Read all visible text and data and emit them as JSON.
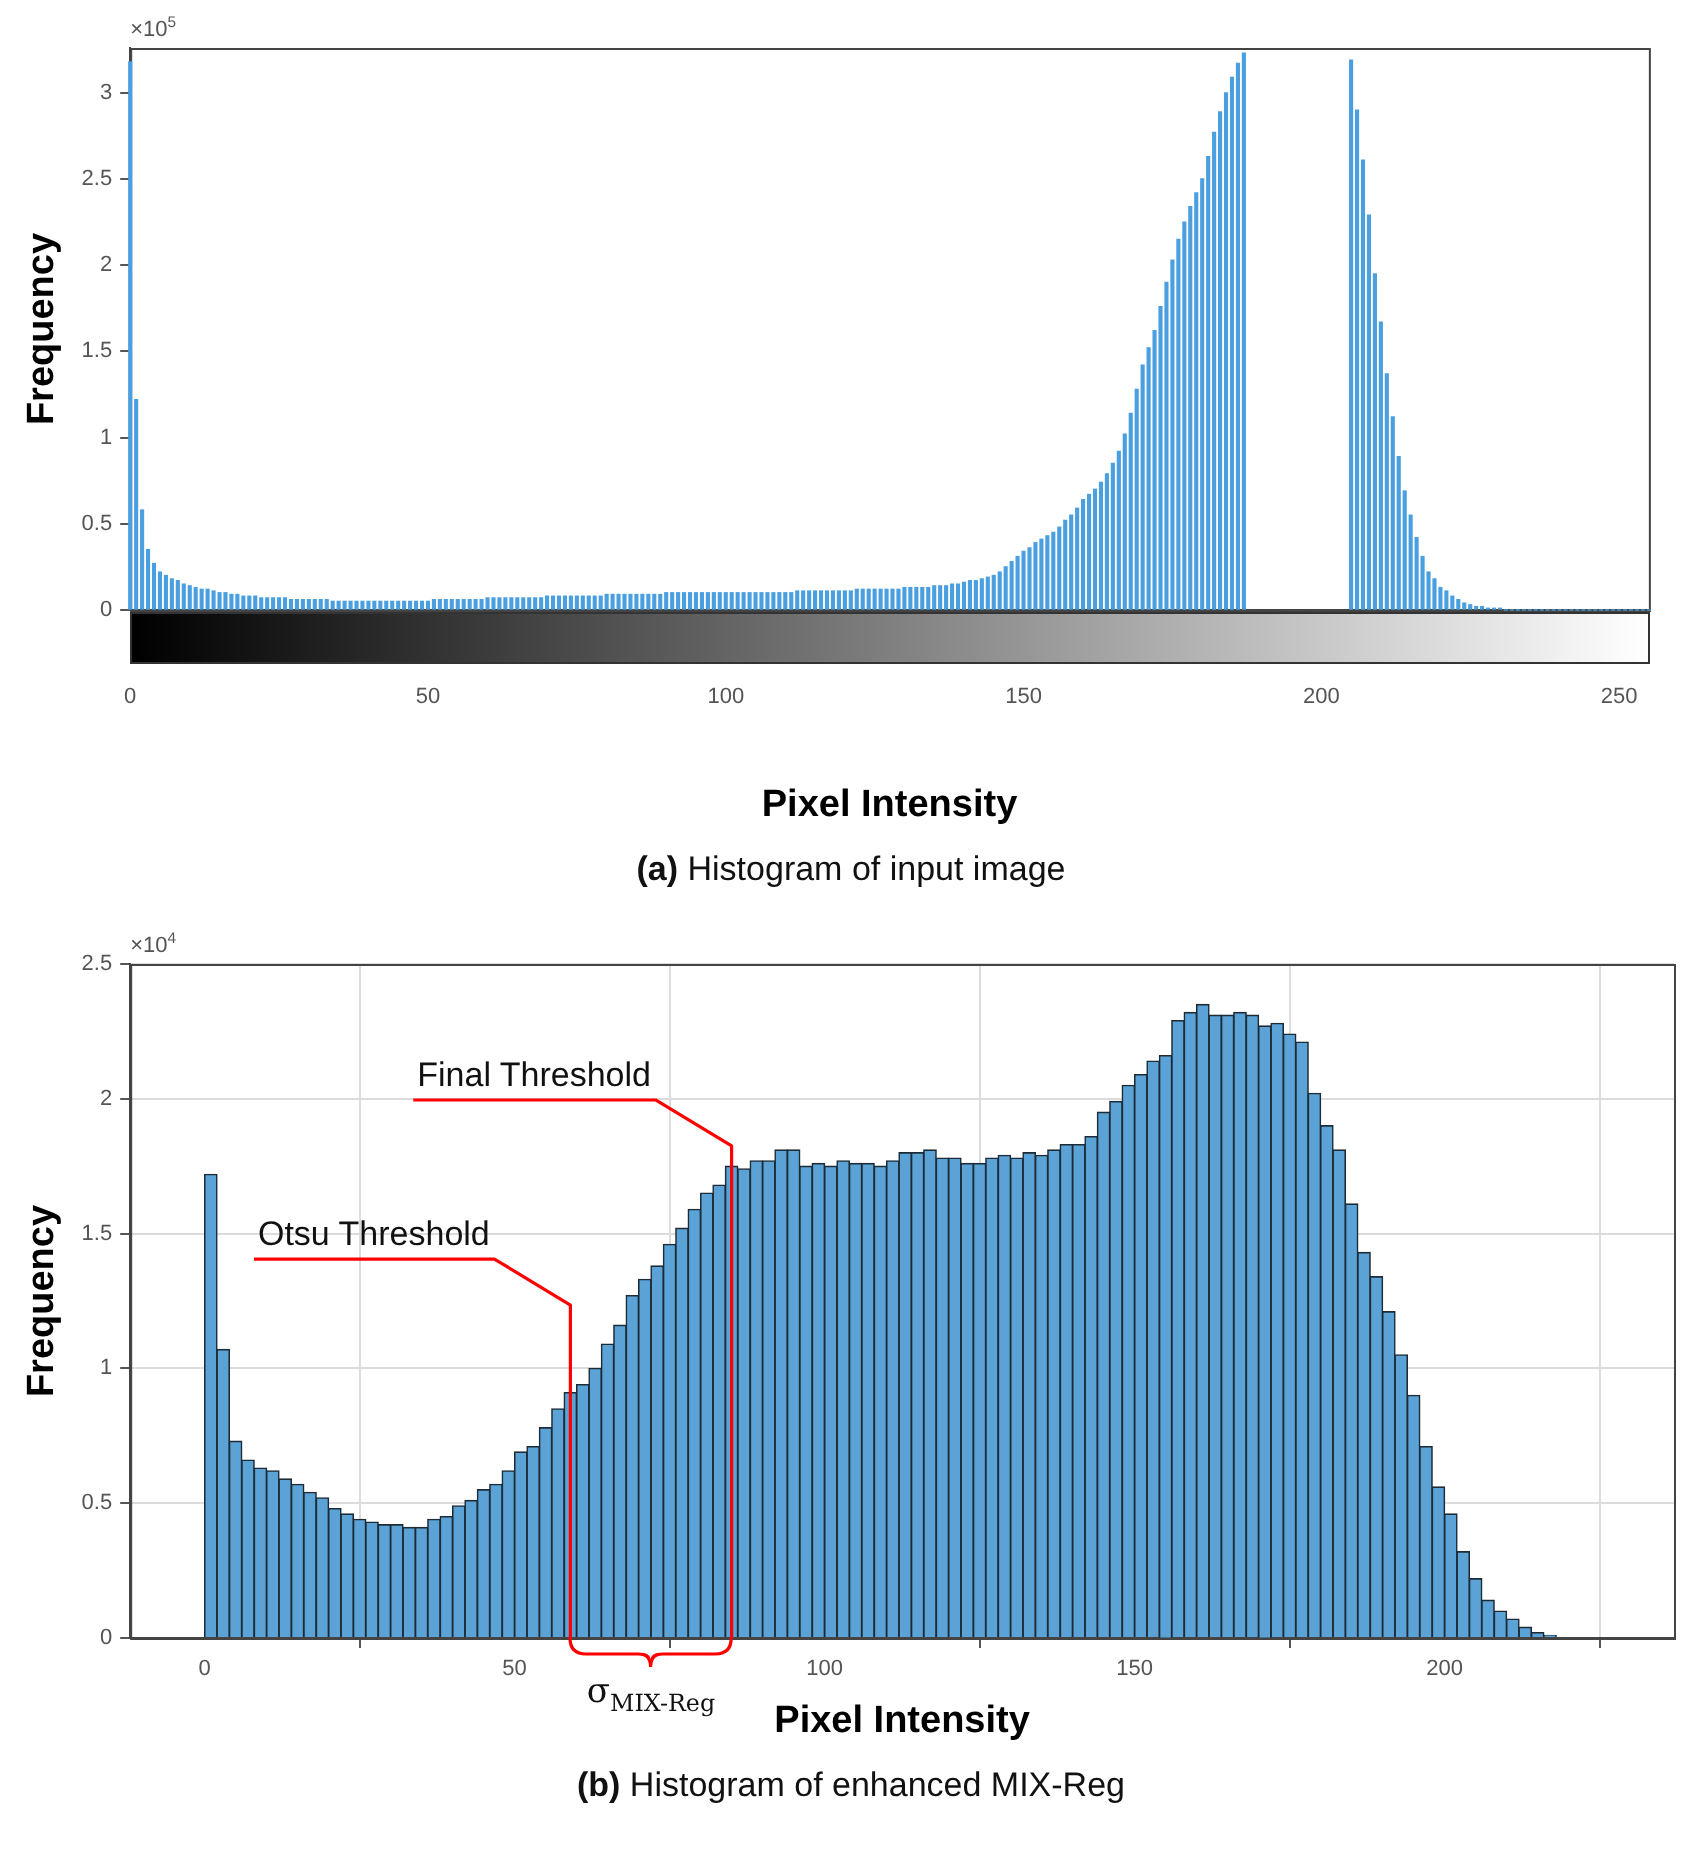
{
  "chart_data": [
    {
      "type": "bar",
      "xlabel": "Pixel Intensity",
      "ylabel": "Frequency",
      "color": "#4a9fe0",
      "x": [
        0,
        1,
        2,
        3,
        4,
        5,
        6,
        7,
        8,
        9,
        10,
        11,
        12,
        13,
        14,
        15,
        16,
        17,
        18,
        19,
        20,
        21,
        22,
        23,
        24,
        25,
        26,
        27,
        28,
        29,
        30,
        31,
        32,
        33,
        34,
        35,
        36,
        37,
        38,
        39,
        40,
        41,
        42,
        43,
        44,
        45,
        46,
        47,
        48,
        49,
        50,
        51,
        52,
        53,
        54,
        55,
        56,
        57,
        58,
        59,
        60,
        61,
        62,
        63,
        64,
        65,
        66,
        67,
        68,
        69,
        70,
        71,
        72,
        73,
        74,
        75,
        76,
        77,
        78,
        79,
        80,
        81,
        82,
        83,
        84,
        85,
        86,
        87,
        88,
        89,
        90,
        91,
        92,
        93,
        94,
        95,
        96,
        97,
        98,
        99,
        100,
        101,
        102,
        103,
        104,
        105,
        106,
        107,
        108,
        109,
        110,
        111,
        112,
        113,
        114,
        115,
        116,
        117,
        118,
        119,
        120,
        121,
        122,
        123,
        124,
        125,
        126,
        127,
        128,
        129,
        130,
        131,
        132,
        133,
        134,
        135,
        136,
        137,
        138,
        139,
        140,
        141,
        142,
        143,
        144,
        145,
        146,
        147,
        148,
        149,
        150,
        151,
        152,
        153,
        154,
        155,
        156,
        157,
        158,
        159,
        160,
        161,
        162,
        163,
        164,
        165,
        166,
        167,
        168,
        169,
        170,
        171,
        172,
        173,
        174,
        175,
        176,
        177,
        178,
        179,
        180,
        181,
        182,
        183,
        184,
        185,
        186,
        187,
        188,
        189,
        190,
        191,
        192,
        193,
        194,
        195,
        196,
        197,
        198,
        199,
        200,
        201,
        202,
        203,
        204,
        205,
        206,
        207,
        208,
        209,
        210,
        211,
        212,
        213,
        214,
        215,
        216,
        217,
        218,
        219,
        220,
        221,
        222,
        223,
        224,
        225,
        226,
        227,
        228,
        229,
        230,
        231,
        232,
        233,
        234,
        235,
        236,
        237,
        238,
        239,
        240,
        241,
        242,
        243,
        244,
        245,
        246,
        247,
        248,
        249,
        250,
        251,
        252,
        253,
        254,
        255
      ],
      "values": [
        3.18,
        1.22,
        0.58,
        0.35,
        0.27,
        0.22,
        0.2,
        0.18,
        0.17,
        0.15,
        0.14,
        0.13,
        0.12,
        0.12,
        0.11,
        0.1,
        0.1,
        0.09,
        0.09,
        0.08,
        0.08,
        0.08,
        0.07,
        0.07,
        0.07,
        0.07,
        0.07,
        0.06,
        0.06,
        0.06,
        0.06,
        0.06,
        0.06,
        0.06,
        0.05,
        0.05,
        0.05,
        0.05,
        0.05,
        0.05,
        0.05,
        0.05,
        0.05,
        0.05,
        0.05,
        0.05,
        0.05,
        0.05,
        0.05,
        0.05,
        0.05,
        0.06,
        0.06,
        0.06,
        0.06,
        0.06,
        0.06,
        0.06,
        0.06,
        0.06,
        0.07,
        0.07,
        0.07,
        0.07,
        0.07,
        0.07,
        0.07,
        0.07,
        0.07,
        0.07,
        0.08,
        0.08,
        0.08,
        0.08,
        0.08,
        0.08,
        0.08,
        0.08,
        0.08,
        0.08,
        0.09,
        0.09,
        0.09,
        0.09,
        0.09,
        0.09,
        0.09,
        0.09,
        0.09,
        0.09,
        0.1,
        0.1,
        0.1,
        0.1,
        0.1,
        0.1,
        0.1,
        0.1,
        0.1,
        0.1,
        0.1,
        0.1,
        0.1,
        0.1,
        0.1,
        0.1,
        0.1,
        0.1,
        0.1,
        0.1,
        0.1,
        0.1,
        0.11,
        0.11,
        0.11,
        0.11,
        0.11,
        0.11,
        0.11,
        0.11,
        0.11,
        0.11,
        0.12,
        0.12,
        0.12,
        0.12,
        0.12,
        0.12,
        0.12,
        0.12,
        0.13,
        0.13,
        0.13,
        0.13,
        0.13,
        0.14,
        0.14,
        0.14,
        0.15,
        0.15,
        0.16,
        0.17,
        0.17,
        0.18,
        0.19,
        0.2,
        0.22,
        0.25,
        0.28,
        0.31,
        0.34,
        0.36,
        0.39,
        0.41,
        0.43,
        0.45,
        0.48,
        0.52,
        0.55,
        0.59,
        0.64,
        0.67,
        0.7,
        0.74,
        0.79,
        0.85,
        0.92,
        1.02,
        1.14,
        1.28,
        1.42,
        1.52,
        1.62,
        1.76,
        1.9,
        2.03,
        2.15,
        2.25,
        2.34,
        2.42,
        2.5,
        2.63,
        2.77,
        2.89,
        3,
        3.09,
        3.17,
        3.23,
        null,
        null,
        null,
        null,
        null,
        null,
        null,
        null,
        null,
        null,
        null,
        null,
        null,
        null,
        null,
        null,
        null,
        3.19,
        2.9,
        2.61,
        2.29,
        1.95,
        1.67,
        1.37,
        1.12,
        0.89,
        0.69,
        0.55,
        0.42,
        0.31,
        0.22,
        0.18,
        0.13,
        0.11,
        0.08,
        0.06,
        0.04,
        0.03,
        0.02,
        0.02,
        0.01,
        0.01,
        0.01,
        0,
        0,
        0,
        0,
        0,
        0,
        0,
        0,
        0,
        0,
        0,
        0,
        0,
        0,
        0,
        0,
        0,
        0,
        0,
        0,
        0,
        0,
        0,
        0,
        0
      ],
      "xlim": [
        0,
        255
      ],
      "xticks": [
        0,
        50,
        100,
        150,
        200,
        250
      ],
      "ylim": [
        0,
        3.26
      ],
      "yticks": [
        0,
        0.5,
        1,
        1.5,
        2,
        2.5,
        3
      ],
      "annotations": [
        "×10$^{5}$",
        "(a) Histogram of input image"
      ]
    },
    {
      "type": "histogram",
      "xlabel": "Pixel Intensity",
      "ylabel": "Frequency",
      "color": "#5ba3d6",
      "grid": true,
      "bins": [
        0,
        2,
        4,
        6,
        8,
        10,
        12,
        14,
        16,
        18,
        20,
        22,
        24,
        26,
        28,
        30,
        32,
        34,
        36,
        38,
        40,
        42,
        44,
        46,
        48,
        50,
        52,
        54,
        56,
        58,
        60,
        62,
        64,
        66,
        68,
        70,
        72,
        74,
        76,
        78,
        80,
        82,
        84,
        86,
        88,
        90,
        92,
        94,
        96,
        98,
        100,
        102,
        104,
        106,
        108,
        110,
        112,
        114,
        116,
        118,
        120,
        122,
        124,
        126,
        128,
        130,
        132,
        134,
        136,
        138,
        140,
        142,
        144,
        146,
        148,
        150,
        152,
        154,
        156,
        158,
        160,
        162,
        164,
        166,
        168,
        170,
        172,
        174,
        176,
        178,
        180,
        182,
        184,
        186,
        188,
        190,
        192,
        194,
        196,
        198,
        200,
        202,
        204,
        206,
        208,
        210,
        212,
        214,
        216,
        218
      ],
      "values": [
        1.72,
        1.07,
        0.73,
        0.66,
        0.63,
        0.62,
        0.59,
        0.57,
        0.54,
        0.52,
        0.48,
        0.46,
        0.44,
        0.43,
        0.42,
        0.42,
        0.41,
        0.41,
        0.44,
        0.45,
        0.49,
        0.51,
        0.55,
        0.57,
        0.62,
        0.69,
        0.71,
        0.78,
        0.85,
        0.91,
        0.94,
        1,
        1.09,
        1.16,
        1.27,
        1.33,
        1.38,
        1.46,
        1.52,
        1.59,
        1.65,
        1.68,
        1.75,
        1.74,
        1.77,
        1.77,
        1.81,
        1.81,
        1.75,
        1.76,
        1.75,
        1.77,
        1.76,
        1.76,
        1.75,
        1.77,
        1.8,
        1.8,
        1.81,
        1.78,
        1.78,
        1.76,
        1.76,
        1.78,
        1.79,
        1.78,
        1.8,
        1.79,
        1.81,
        1.83,
        1.83,
        1.86,
        1.95,
        1.99,
        2.05,
        2.09,
        2.14,
        2.16,
        2.29,
        2.32,
        2.35,
        2.31,
        2.31,
        2.32,
        2.31,
        2.27,
        2.28,
        2.24,
        2.21,
        2.02,
        1.9,
        1.81,
        1.61,
        1.43,
        1.34,
        1.21,
        1.05,
        0.9,
        0.71,
        0.56,
        0.46,
        0.32,
        0.22,
        0.14,
        0.1,
        0.07,
        0.04,
        0.02,
        0.01
      ],
      "xlim": [
        -12,
        237
      ],
      "xticks": [
        0,
        50,
        100,
        150,
        200
      ],
      "ylim": [
        0,
        2.5
      ],
      "yticks": [
        0,
        0.5,
        1,
        1.5,
        2,
        2.5
      ],
      "ref_lines": [
        {
          "axis": "x",
          "value": 59,
          "label": "Otsu Threshold",
          "color": "#ff0000"
        },
        {
          "axis": "x",
          "value": 85,
          "label": "Final Threshold",
          "color": "#ff0000"
        }
      ],
      "annotations": [
        "×10$^{4}$",
        "σ$_{MIX-Reg}$",
        "(b) Histogram of enhanced MIX-Reg"
      ]
    }
  ]
}
